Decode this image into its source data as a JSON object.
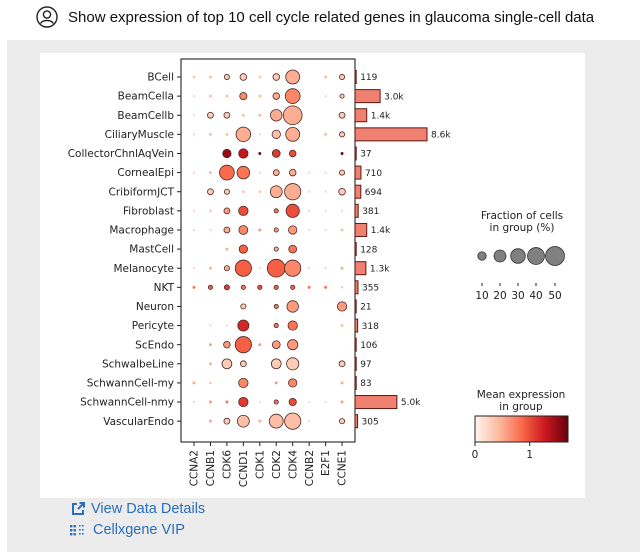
{
  "prompt": {
    "icon": "user-icon",
    "text": "Show expression of top 10 cell cycle related genes in glaucoma single-cell data"
  },
  "assistant_icon": "dna-icon",
  "links": [
    {
      "icon": "external-link-icon",
      "label": "View Data Details"
    },
    {
      "icon": "grid-dots-icon",
      "label": "Cellxgene VIP"
    }
  ],
  "colors": {
    "link": "#2a6ebd",
    "bar_fill": "#f08070",
    "bar_edge": "#5a1a10",
    "cmap_low": "#fff5f0",
    "cmap_mid": "#fb6a4a",
    "cmap_high": "#67000d"
  },
  "chart_data": {
    "type": "dotplot",
    "genes": [
      "CCNA2",
      "CCNB1",
      "CDK6",
      "CCND1",
      "CDK1",
      "CDK2",
      "CDK4",
      "CCNB2",
      "E2F1",
      "CCNE1"
    ],
    "cell_types": [
      "BCell",
      "BeamCella",
      "BeamCellb",
      "CiliaryMuscle",
      "CollectorChnlAqVein",
      "CornealEpi",
      "CribiformJCT",
      "Fibroblast",
      "Macrophage",
      "MastCell",
      "Melanocyte",
      "NKT",
      "Neuron",
      "Pericyte",
      "ScEndo",
      "SchwalbeLine",
      "SchwannCell-my",
      "SchwannCell-nmy",
      "VascularEndo"
    ],
    "fraction_pct": [
      [
        1,
        1,
        3,
        5,
        1,
        5,
        22,
        0,
        1,
        3
      ],
      [
        0.5,
        1,
        1,
        6,
        1,
        5,
        25,
        0,
        0.5,
        2
      ],
      [
        0.5,
        4,
        4,
        1,
        1,
        15,
        40,
        0,
        0,
        4
      ],
      [
        0.5,
        1,
        1,
        24,
        0.5,
        8,
        22,
        0,
        1,
        3
      ],
      [
        0,
        0,
        8,
        10,
        1,
        7,
        5,
        0,
        0,
        1
      ],
      [
        0.5,
        1,
        25,
        18,
        0.5,
        4,
        5,
        0.5,
        0.5,
        3
      ],
      [
        0,
        4,
        3,
        1,
        1,
        16,
        30,
        0.5,
        0.5,
        5
      ],
      [
        0.5,
        1,
        4,
        10,
        0,
        2,
        20,
        0.5,
        0.5,
        0.5
      ],
      [
        0.5,
        0.5,
        4,
        9,
        1,
        2,
        8,
        0.5,
        0.5,
        1
      ],
      [
        0,
        0,
        1,
        8,
        0,
        2,
        7,
        0,
        0,
        0
      ],
      [
        0.5,
        1,
        3,
        30,
        0.5,
        36,
        30,
        0.5,
        0.5,
        1
      ],
      [
        1,
        2,
        3,
        2,
        2,
        2,
        2,
        1,
        1,
        0.5
      ],
      [
        0,
        0,
        0,
        3,
        0,
        2,
        15,
        0,
        0,
        10
      ],
      [
        0,
        0.5,
        0.5,
        14,
        0,
        2,
        10,
        0,
        0,
        1
      ],
      [
        0,
        1,
        5,
        30,
        1,
        7,
        12,
        0,
        0,
        0
      ],
      [
        0,
        1,
        11,
        4,
        0,
        11,
        17,
        0,
        0,
        4
      ],
      [
        1,
        0.5,
        0,
        10,
        0,
        1,
        8,
        0,
        0,
        1
      ],
      [
        0.5,
        1,
        1,
        10,
        0.5,
        2,
        6,
        0.5,
        0.5,
        1
      ],
      [
        0,
        1,
        4,
        16,
        1,
        22,
        30,
        0.5,
        0,
        3
      ]
    ],
    "mean_expr": [
      [
        0.3,
        0.4,
        0.3,
        0.3,
        0.3,
        0.3,
        0.5,
        0,
        0.4,
        0.3
      ],
      [
        0.3,
        0.4,
        0.4,
        0.7,
        0.4,
        0.5,
        0.7,
        0,
        0.3,
        0.3
      ],
      [
        0.3,
        0.3,
        0.3,
        0.4,
        0.4,
        0.5,
        0.5,
        0,
        0,
        0.3
      ],
      [
        0.3,
        0.4,
        0.4,
        0.5,
        0.3,
        0.4,
        0.5,
        0,
        0.4,
        0.3
      ],
      [
        0,
        0,
        1.5,
        1.3,
        1.6,
        1.1,
        1.0,
        0,
        0,
        1.6
      ],
      [
        0.3,
        0.4,
        0.85,
        0.8,
        0.3,
        0.5,
        0.5,
        0.3,
        0.3,
        0.3
      ],
      [
        0,
        0.3,
        0.3,
        0.3,
        0.3,
        0.5,
        0.5,
        0.3,
        0.3,
        0.3
      ],
      [
        0.3,
        0.3,
        0.6,
        1.0,
        0,
        0.8,
        1.0,
        0.3,
        0.3,
        0.3
      ],
      [
        0.3,
        0.3,
        0.5,
        0.7,
        0.6,
        0.6,
        0.6,
        0.3,
        0.3,
        0.4
      ],
      [
        0,
        0,
        0.5,
        0.9,
        0,
        0.5,
        0.8,
        0,
        0,
        0
      ],
      [
        0.3,
        0.5,
        0.5,
        0.9,
        0.3,
        0.9,
        0.7,
        0.3,
        0.3,
        0.5
      ],
      [
        0.8,
        0.9,
        1.1,
        0.8,
        1.0,
        0.9,
        0.9,
        0.8,
        0.8,
        0.4
      ],
      [
        0,
        0,
        0,
        0.3,
        0,
        0.8,
        0.6,
        0,
        0,
        0.6
      ],
      [
        0,
        0.3,
        0.3,
        1.2,
        0,
        0.8,
        0.8,
        0,
        0,
        0.4
      ],
      [
        0,
        0.6,
        0.6,
        0.9,
        0.6,
        0.6,
        0.6,
        0,
        0,
        0
      ],
      [
        0,
        0.5,
        0.3,
        0.3,
        0,
        0.3,
        0.3,
        0,
        0,
        0.3
      ],
      [
        0.5,
        0.5,
        0,
        0.7,
        0,
        0.6,
        0.7,
        0,
        0,
        0.5
      ],
      [
        0.3,
        0.6,
        0.8,
        1.1,
        0.3,
        0.8,
        1.0,
        0.3,
        0.3,
        0.6
      ],
      [
        0,
        0.5,
        0.3,
        0.4,
        0.5,
        0.4,
        0.4,
        0.3,
        0,
        0.3
      ]
    ],
    "cell_counts": [
      119,
      3000,
      1400,
      8600,
      37,
      710,
      694,
      381,
      1400,
      128,
      1300,
      355,
      21,
      318,
      106,
      97,
      83,
      5000,
      305
    ],
    "count_labels": [
      "119",
      "3.0k",
      "1.4k",
      "8.6k",
      "37",
      "710",
      "694",
      "381",
      "1.4k",
      "128",
      "1.3k",
      "355",
      "21",
      "318",
      "106",
      "97",
      "83",
      "5.0k",
      "305"
    ],
    "size_legend": {
      "title_line1": "Fraction of cells",
      "title_line2": "in group (%)",
      "values": [
        10,
        20,
        30,
        40,
        50
      ],
      "labels": [
        "10",
        "20",
        "30",
        "40",
        "50"
      ]
    },
    "color_legend": {
      "title_line1": "Mean expression",
      "title_line2": "in group",
      "range": [
        0,
        1.7
      ],
      "ticks": [
        0,
        1
      ],
      "tick_labels": [
        "0",
        "1"
      ]
    }
  }
}
